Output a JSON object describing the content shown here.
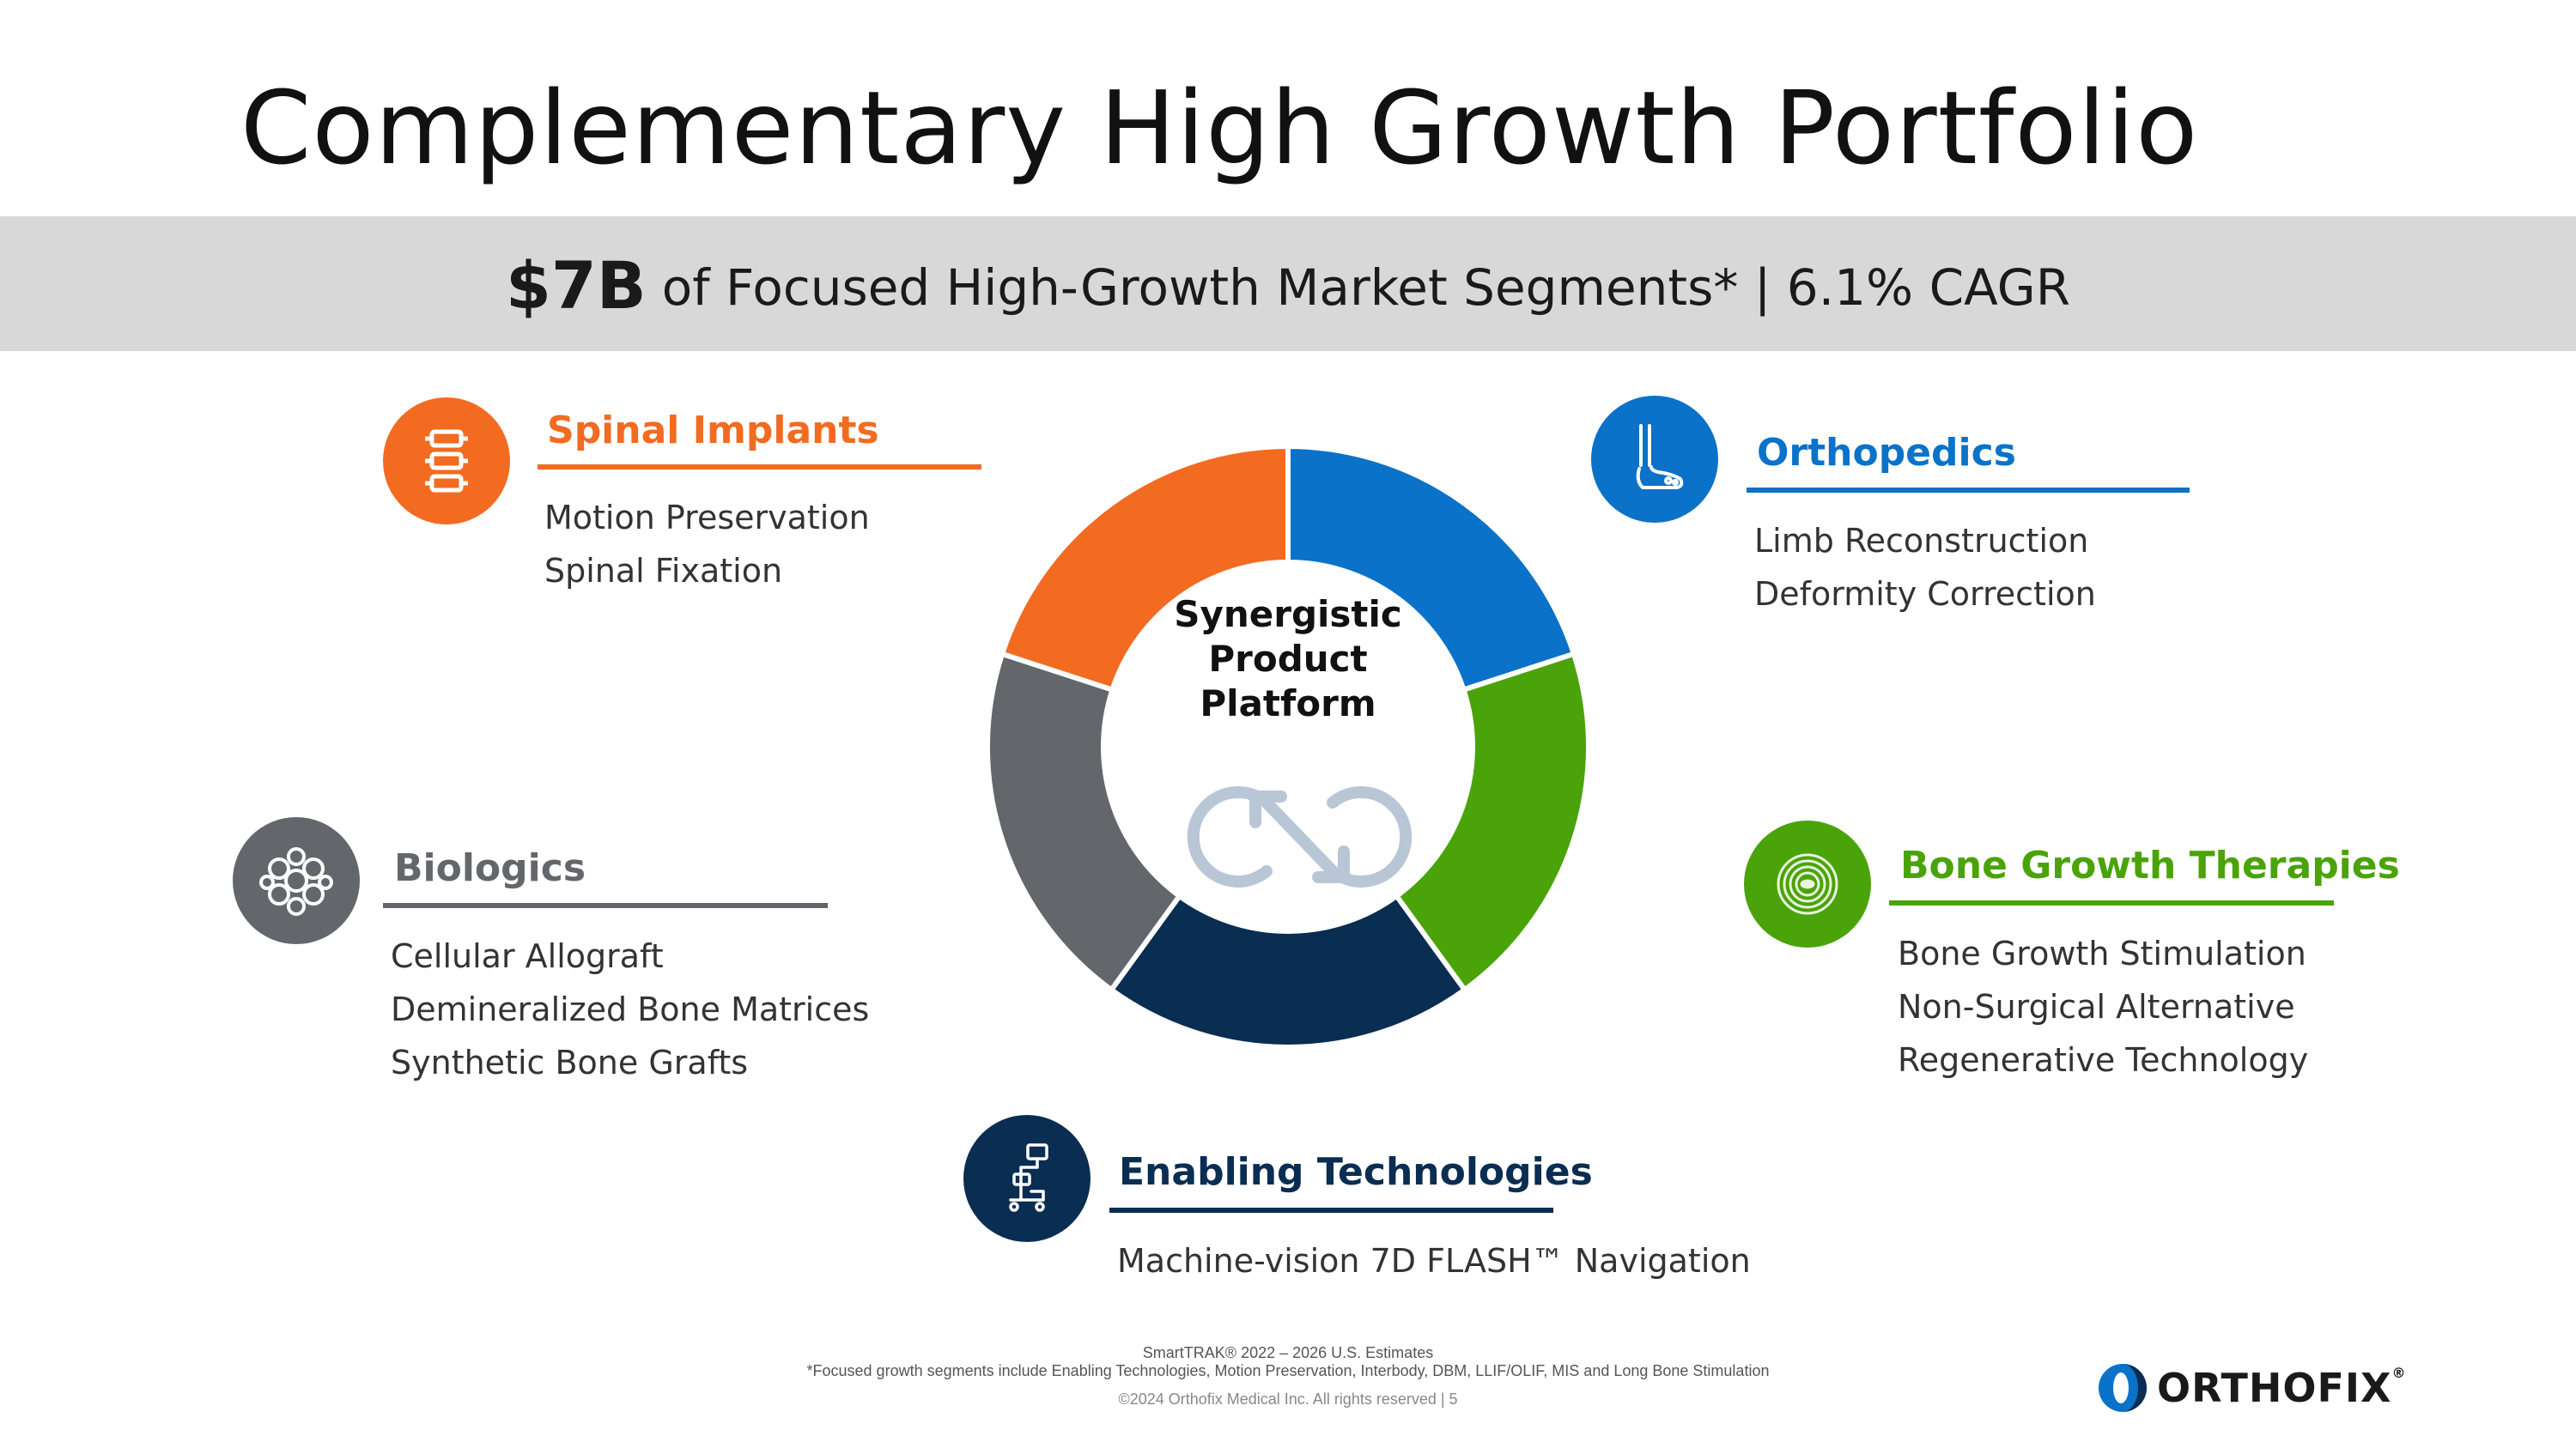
{
  "title": "Complementary High Growth Portfolio",
  "banner": {
    "amount": "$7B",
    "text": "of Focused High-Growth Market Segments* | 6.1% CAGR"
  },
  "center": {
    "line1": "Synergistic",
    "line2": "Product",
    "line3": "Platform",
    "icon": "sync-arrows-icon"
  },
  "segments": {
    "spinal": {
      "title": "Spinal Implants",
      "color": "#f26b21",
      "icon": "spine-vertebra-icon",
      "items": [
        "Motion Preservation",
        "Spinal Fixation"
      ]
    },
    "ortho": {
      "title": "Orthopedics",
      "color": "#0a72c8",
      "icon": "foot-bone-icon",
      "items": [
        "Limb Reconstruction",
        "Deformity Correction"
      ]
    },
    "bio": {
      "title": "Biologics",
      "color": "#63676b",
      "icon": "cell-cluster-icon",
      "items": [
        "Cellular Allograft",
        "Demineralized Bone Matrices",
        "Synthetic Bone Grafts"
      ]
    },
    "bone": {
      "title": "Bone Growth Therapies",
      "color": "#4ba30a",
      "icon": "concentric-rings-icon",
      "items": [
        "Bone Growth Stimulation",
        "Non-Surgical Alternative",
        "Regenerative Technology"
      ]
    },
    "enabling": {
      "title": "Enabling Technologies",
      "color": "#0a2d52",
      "icon": "navigation-cart-icon",
      "items": [
        "Machine-vision 7D FLASH™ Navigation"
      ]
    }
  },
  "ring_colors": {
    "blue": "#0a72c8",
    "green": "#4ba30a",
    "navy": "#0a2d52",
    "gray": "#63676b",
    "orange": "#f26b21"
  },
  "footer": {
    "source": "SmartTRAK® 2022 – 2026 U.S. Estimates",
    "note": "*Focused growth segments include Enabling Technologies, Motion Preservation, Interbody, DBM, LLIF/OLIF, MIS and Long Bone Stimulation",
    "copyright": "©2024 Orthofix Medical Inc. All rights reserved  |   5"
  },
  "logo": {
    "text": "ORTHOFIX",
    "reg": "®"
  }
}
